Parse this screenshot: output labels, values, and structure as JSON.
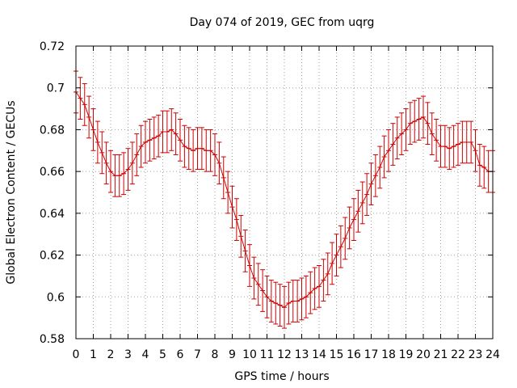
{
  "chart_data": {
    "type": "line",
    "title": "Day 074 of 2019, GEC from uqrg",
    "xlabel": "GPS time / hours",
    "ylabel": "Global Electron Content / GECUs",
    "xlim": [
      0,
      24
    ],
    "ylim": [
      0.58,
      0.72
    ],
    "grid": true,
    "x_ticks": [
      0,
      1,
      2,
      3,
      4,
      5,
      6,
      7,
      8,
      9,
      10,
      11,
      12,
      13,
      14,
      15,
      16,
      17,
      18,
      19,
      20,
      21,
      22,
      23,
      24
    ],
    "x_tick_labels": [
      "0",
      "1",
      "2",
      "3",
      "4",
      "5",
      "6",
      "7",
      "8",
      "9",
      "10",
      "11",
      "12",
      "13",
      "14",
      "15",
      "16",
      "17",
      "18",
      "19",
      "20",
      "21",
      "22",
      "23",
      "24"
    ],
    "y_ticks": [
      0.58,
      0.6,
      0.62,
      0.64,
      0.66,
      0.68,
      0.7,
      0.72
    ],
    "y_tick_labels": [
      "0.58",
      "0.6",
      "0.62",
      "0.64",
      "0.66",
      "0.68",
      "0.7",
      "0.72"
    ],
    "series": [
      {
        "name": "GEC",
        "color": "#cc0000",
        "error": 0.01,
        "x": [
          0,
          0.25,
          0.5,
          0.75,
          1,
          1.25,
          1.5,
          1.75,
          2,
          2.25,
          2.5,
          2.75,
          3,
          3.25,
          3.5,
          3.75,
          4,
          4.25,
          4.5,
          4.75,
          5,
          5.25,
          5.5,
          5.75,
          6,
          6.25,
          6.5,
          6.75,
          7,
          7.25,
          7.5,
          7.75,
          8,
          8.25,
          8.5,
          8.75,
          9,
          9.25,
          9.5,
          9.75,
          10,
          10.25,
          10.5,
          10.75,
          11,
          11.25,
          11.5,
          11.75,
          12,
          12.25,
          12.5,
          12.75,
          13,
          13.25,
          13.5,
          13.75,
          14,
          14.25,
          14.5,
          14.75,
          15,
          15.25,
          15.5,
          15.75,
          16,
          16.25,
          16.5,
          16.75,
          17,
          17.25,
          17.5,
          17.75,
          18,
          18.25,
          18.5,
          18.75,
          19,
          19.25,
          19.5,
          19.75,
          20,
          20.25,
          20.5,
          20.75,
          21,
          21.25,
          21.5,
          21.75,
          22,
          22.25,
          22.5,
          22.75,
          23,
          23.25,
          23.5,
          23.75,
          24
        ],
        "y": [
          0.698,
          0.695,
          0.692,
          0.686,
          0.68,
          0.674,
          0.669,
          0.664,
          0.66,
          0.658,
          0.658,
          0.659,
          0.661,
          0.664,
          0.668,
          0.672,
          0.674,
          0.675,
          0.676,
          0.677,
          0.679,
          0.679,
          0.68,
          0.678,
          0.675,
          0.672,
          0.671,
          0.67,
          0.671,
          0.671,
          0.67,
          0.67,
          0.668,
          0.664,
          0.657,
          0.65,
          0.643,
          0.637,
          0.629,
          0.622,
          0.615,
          0.609,
          0.606,
          0.603,
          0.6,
          0.598,
          0.597,
          0.596,
          0.595,
          0.597,
          0.598,
          0.598,
          0.599,
          0.6,
          0.602,
          0.604,
          0.605,
          0.608,
          0.611,
          0.616,
          0.62,
          0.624,
          0.628,
          0.633,
          0.637,
          0.641,
          0.645,
          0.649,
          0.654,
          0.658,
          0.662,
          0.667,
          0.67,
          0.673,
          0.676,
          0.678,
          0.68,
          0.683,
          0.684,
          0.685,
          0.686,
          0.683,
          0.678,
          0.675,
          0.672,
          0.672,
          0.671,
          0.672,
          0.673,
          0.674,
          0.674,
          0.674,
          0.67,
          0.663,
          0.662,
          0.66,
          0.66
        ]
      }
    ]
  }
}
